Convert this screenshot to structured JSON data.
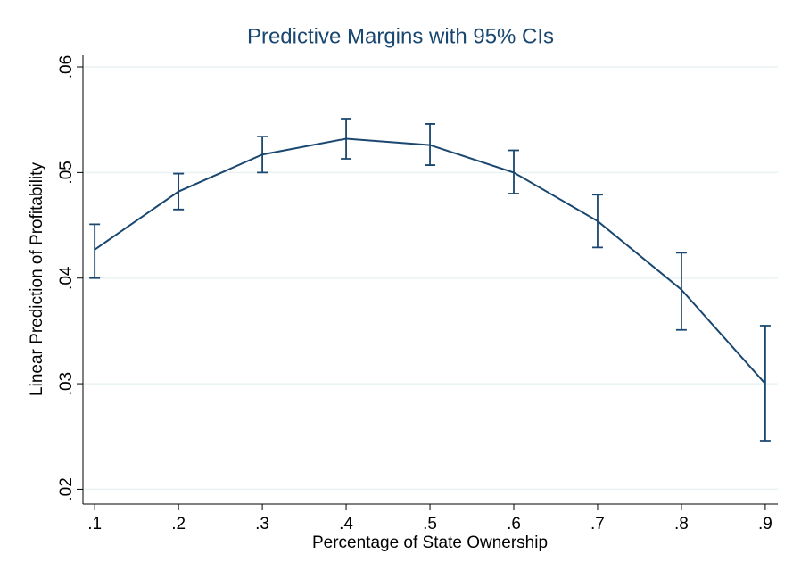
{
  "chart_data": {
    "type": "line",
    "title": "Predictive Margins with 95% CIs",
    "x_label": "Percentage of State Ownership",
    "y_label": "Linear Prediction of Profitability",
    "x": [
      0.1,
      0.2,
      0.3,
      0.4,
      0.5,
      0.6,
      0.7,
      0.8,
      0.9
    ],
    "series": [
      {
        "color": "#1a476f",
        "values": [
          0.0427,
          0.0482,
          0.0517,
          0.0532,
          0.0526,
          0.05,
          0.0454,
          0.0389,
          0.03
        ],
        "lower": [
          0.04,
          0.0465,
          0.05,
          0.0513,
          0.0507,
          0.048,
          0.0429,
          0.0351,
          0.0246
        ],
        "upper": [
          0.0451,
          0.0499,
          0.0534,
          0.0551,
          0.0546,
          0.0521,
          0.0479,
          0.0424,
          0.0355
        ]
      }
    ],
    "xlim": [
      0.086,
      0.915
    ],
    "ylim": [
      0.0186,
      0.0611
    ],
    "xticks": [
      {
        "value": 0.1,
        "label": ".1"
      },
      {
        "value": 0.2,
        "label": ".2"
      },
      {
        "value": 0.3,
        "label": ".3"
      },
      {
        "value": 0.4,
        "label": ".4"
      },
      {
        "value": 0.5,
        "label": ".5"
      },
      {
        "value": 0.6,
        "label": ".6"
      },
      {
        "value": 0.7,
        "label": ".7"
      },
      {
        "value": 0.8,
        "label": ".8"
      },
      {
        "value": 0.9,
        "label": ".9"
      }
    ],
    "yticks": [
      {
        "value": 0.02,
        "label": ".02"
      },
      {
        "value": 0.03,
        "label": ".03"
      },
      {
        "value": 0.04,
        "label": ".04"
      },
      {
        "value": 0.05,
        "label": ".05"
      },
      {
        "value": 0.06,
        "label": ".06"
      }
    ],
    "grid": true
  }
}
